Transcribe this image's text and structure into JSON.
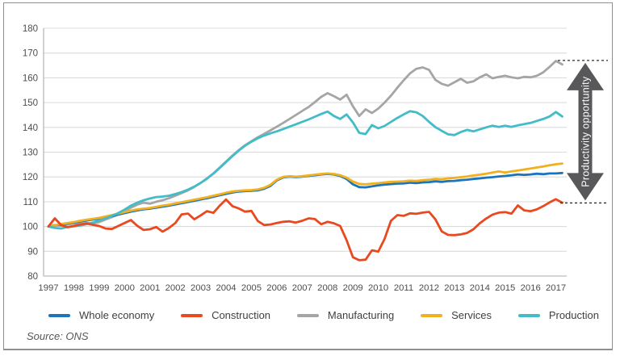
{
  "source": "Source: ONS",
  "chart_data": {
    "type": "line",
    "title": "",
    "xlabel": "",
    "ylabel": "",
    "ylim": [
      80,
      180
    ],
    "grid": true,
    "legend_position": "bottom",
    "y_ticks": [
      80,
      90,
      100,
      110,
      120,
      130,
      140,
      150,
      160,
      170,
      180
    ],
    "x_tick_labels": [
      "1997",
      "1998",
      "1999",
      "2000",
      "2001",
      "2002",
      "2003",
      "2004",
      "2005",
      "2006",
      "2007",
      "2008",
      "2009",
      "2010",
      "2011",
      "2012",
      "2013",
      "2014",
      "2015",
      "2016",
      "2017"
    ],
    "x_start": 1997,
    "x_step": 0.25,
    "colors": {
      "grid": "#dcdcdc",
      "axis": "#ababab",
      "tick_label": "#4d4d4d"
    },
    "series": [
      {
        "name": "Whole economy",
        "color": "#1c75bb",
        "values": [
          100.0,
          100.4,
          100.8,
          101.2,
          101.6,
          102.0,
          102.4,
          102.8,
          103.2,
          103.7,
          104.2,
          104.8,
          105.4,
          106.0,
          106.5,
          106.9,
          107.2,
          107.6,
          108.0,
          108.4,
          108.9,
          109.4,
          109.9,
          110.4,
          110.9,
          111.4,
          112.0,
          112.6,
          113.2,
          113.7,
          114.1,
          114.3,
          114.4,
          114.6,
          115.2,
          116.4,
          118.6,
          119.8,
          120.1,
          119.9,
          120.1,
          120.4,
          120.7,
          121.0,
          121.2,
          121.0,
          120.4,
          119.2,
          117.0,
          115.9,
          115.8,
          116.2,
          116.6,
          116.9,
          117.1,
          117.3,
          117.4,
          117.7,
          117.5,
          117.8,
          117.9,
          118.2,
          118.0,
          118.3,
          118.4,
          118.7,
          118.9,
          119.2,
          119.4,
          119.7,
          119.9,
          120.2,
          120.4,
          120.7,
          121.0,
          120.8,
          121.0,
          121.3,
          121.1,
          121.4,
          121.4,
          121.6
        ]
      },
      {
        "name": "Construction",
        "color": "#e8491e",
        "values": [
          100.0,
          103.3,
          100.6,
          99.7,
          100.2,
          100.8,
          101.2,
          100.7,
          100.2,
          99.2,
          99.0,
          100.2,
          101.4,
          102.6,
          100.3,
          98.6,
          98.9,
          99.8,
          97.9,
          99.4,
          101.4,
          104.9,
          105.2,
          102.9,
          104.5,
          106.2,
          105.5,
          108.4,
          110.9,
          108.2,
          107.3,
          106.0,
          106.3,
          102.2,
          100.6,
          100.8,
          101.4,
          101.9,
          102.1,
          101.6,
          102.3,
          103.3,
          103.0,
          100.9,
          101.9,
          101.3,
          100.2,
          94.5,
          87.6,
          86.4,
          86.6,
          90.4,
          89.9,
          95.0,
          102.3,
          104.6,
          104.3,
          105.3,
          105.1,
          105.6,
          105.9,
          102.9,
          98.0,
          96.6,
          96.5,
          96.8,
          97.4,
          98.9,
          101.3,
          103.2,
          104.8,
          105.6,
          105.8,
          105.2,
          108.5,
          106.5,
          106.2,
          106.9,
          108.2,
          109.7,
          111.0,
          109.6
        ]
      },
      {
        "name": "Manufacturing",
        "color": "#a5a5a5",
        "values": [
          100.0,
          100.6,
          100.3,
          100.9,
          101.2,
          101.0,
          101.4,
          101.2,
          101.8,
          102.8,
          103.8,
          104.9,
          106.2,
          107.6,
          108.8,
          109.6,
          109.2,
          110.0,
          110.6,
          111.4,
          112.4,
          113.5,
          114.6,
          116.0,
          117.6,
          119.4,
          121.4,
          123.8,
          126.2,
          128.6,
          130.8,
          132.8,
          134.4,
          136.0,
          137.4,
          138.8,
          140.3,
          141.8,
          143.4,
          145.0,
          146.6,
          148.2,
          150.2,
          152.3,
          153.8,
          152.6,
          151.2,
          153.2,
          148.5,
          144.6,
          147.3,
          145.8,
          147.6,
          150.0,
          152.8,
          156.0,
          159.0,
          161.8,
          163.6,
          164.2,
          163.2,
          159.2,
          157.6,
          156.8,
          158.2,
          159.6,
          158.0,
          158.6,
          160.2,
          161.4,
          159.8,
          160.4,
          160.8,
          160.2,
          159.8,
          160.4,
          160.2,
          160.8,
          162.2,
          164.4,
          166.8,
          165.4
        ]
      },
      {
        "name": "Services",
        "color": "#f2b01e",
        "values": [
          100.0,
          100.5,
          101.0,
          101.4,
          101.8,
          102.3,
          102.7,
          103.1,
          103.5,
          104.0,
          104.6,
          105.2,
          105.8,
          106.4,
          106.9,
          107.2,
          107.5,
          107.9,
          108.4,
          108.8,
          109.3,
          109.8,
          110.3,
          110.8,
          111.3,
          111.8,
          112.4,
          113.0,
          113.6,
          114.1,
          114.4,
          114.6,
          114.7,
          115.0,
          115.6,
          116.8,
          118.9,
          120.0,
          120.3,
          120.1,
          120.3,
          120.6,
          120.9,
          121.2,
          121.4,
          121.2,
          120.7,
          119.7,
          118.1,
          117.2,
          117.0,
          117.3,
          117.5,
          117.8,
          118.0,
          118.1,
          118.2,
          118.5,
          118.4,
          118.7,
          118.9,
          119.2,
          119.1,
          119.4,
          119.6,
          119.9,
          120.2,
          120.6,
          120.9,
          121.3,
          121.8,
          122.2,
          121.8,
          122.2,
          122.6,
          123.0,
          123.4,
          123.8,
          124.2,
          124.7,
          125.1,
          125.4
        ]
      },
      {
        "name": "Production",
        "color": "#41bcc8",
        "values": [
          100.0,
          99.4,
          99.2,
          99.8,
          100.1,
          100.4,
          100.9,
          101.6,
          102.4,
          103.3,
          104.3,
          105.4,
          106.8,
          108.4,
          109.6,
          110.6,
          111.3,
          111.9,
          112.1,
          112.4,
          113.1,
          113.9,
          114.9,
          116.1,
          117.6,
          119.3,
          121.3,
          123.6,
          126.0,
          128.4,
          130.6,
          132.6,
          134.2,
          135.6,
          136.7,
          137.6,
          138.4,
          139.3,
          140.3,
          141.2,
          142.2,
          143.2,
          144.3,
          145.4,
          146.4,
          144.6,
          143.4,
          145.2,
          142.0,
          137.8,
          137.3,
          140.9,
          139.6,
          140.6,
          142.2,
          143.8,
          145.2,
          146.5,
          146.1,
          144.6,
          142.2,
          140.1,
          138.6,
          137.2,
          136.9,
          138.1,
          139.0,
          138.4,
          139.2,
          140.0,
          140.7,
          140.2,
          140.7,
          140.2,
          140.8,
          141.3,
          141.8,
          142.6,
          143.4,
          144.4,
          146.2,
          144.4
        ]
      }
    ],
    "annotation": {
      "label": "Productivity opportunity",
      "arrow_color": "#58585a",
      "label_color": "#ffffff",
      "dash_color": "#2e2e2e",
      "dashed_top_value": 167,
      "dashed_bottom_value": 109.5
    }
  },
  "legend": {
    "items": [
      {
        "label": "Whole economy"
      },
      {
        "label": "Construction"
      },
      {
        "label": "Manufacturing"
      },
      {
        "label": "Services"
      },
      {
        "label": "Production"
      }
    ]
  }
}
